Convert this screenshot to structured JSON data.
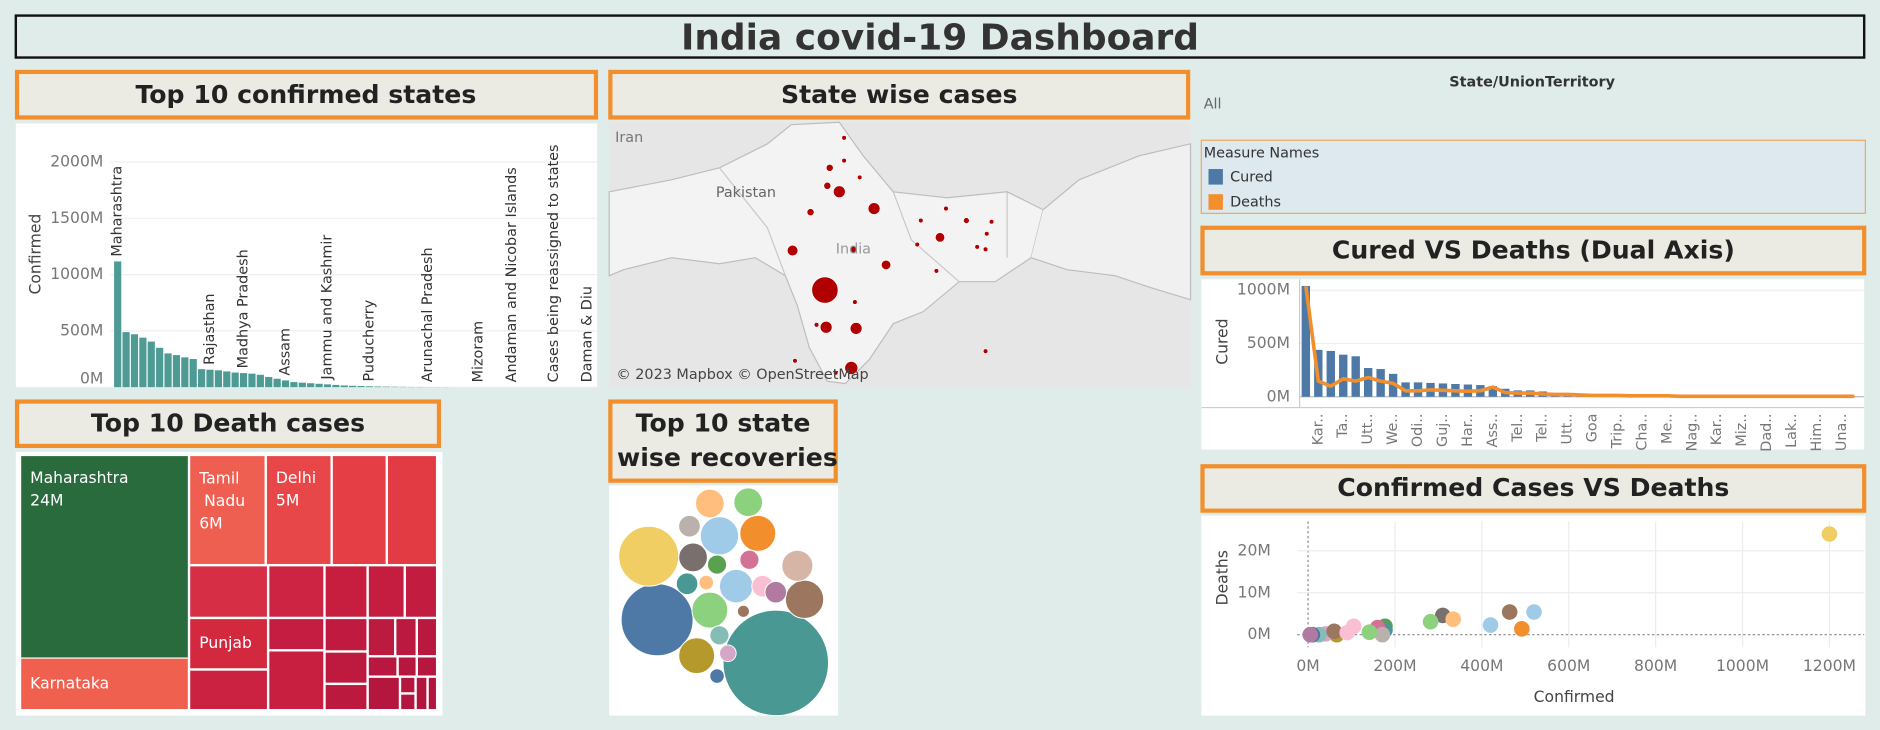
{
  "title": "India covid-19 Dashboard",
  "filter": {
    "label": "State/UnionTerritory",
    "value": "All"
  },
  "chart_data": [
    {
      "type": "bar",
      "title": "Top 10 confirmed states",
      "y_label": "Confirmed",
      "color": "#4e9a94",
      "categories": [
        "Maharashtra",
        null,
        null,
        null,
        null,
        null,
        null,
        null,
        null,
        null,
        null,
        "Rajasthan",
        null,
        null,
        null,
        "Madhya Pradesh",
        null,
        null,
        null,
        null,
        "Assam",
        null,
        null,
        null,
        null,
        "Jammu and Kashmir",
        null,
        null,
        null,
        null,
        "Puducherry",
        null,
        null,
        null,
        null,
        null,
        null,
        "Arunachal Pradesh",
        null,
        null,
        null,
        null,
        null,
        "Mizoram",
        null,
        null,
        null,
        "Andaman and Nicobar Islands",
        null,
        null,
        null,
        null,
        "Cases being reassigned to states",
        null,
        null,
        null,
        "Daman & Diu"
      ],
      "values": [
        1117,
        489,
        470,
        440,
        405,
        350,
        300,
        285,
        265,
        250,
        160,
        155,
        150,
        140,
        130,
        125,
        120,
        110,
        90,
        75,
        60,
        45,
        40,
        35,
        30,
        25,
        20,
        15,
        12,
        10,
        8,
        6,
        5,
        4,
        3,
        2,
        2,
        1,
        1,
        1,
        0,
        0,
        0,
        0,
        0,
        0,
        0,
        0,
        0,
        0,
        0,
        0,
        0,
        0,
        0,
        0,
        0
      ],
      "ylim": [
        0,
        2300
      ],
      "yticks": [
        {
          "value": 0,
          "label": "0M"
        },
        {
          "value": 500,
          "label": "500M"
        },
        {
          "value": 1000,
          "label": "1000M"
        },
        {
          "value": 1500,
          "label": "1500M"
        },
        {
          "value": 2000,
          "label": "2000M"
        }
      ],
      "grid": true
    },
    {
      "type": "map",
      "title": "State wise cases",
      "labels": [
        "Iran",
        "Pakistan",
        "India"
      ],
      "attribution": "© 2023 Mapbox © OpenStreetMap",
      "color": "#b00000"
    },
    {
      "type": "treemap",
      "title": "Top 10 Death cases",
      "categories": [
        "Maharashtra",
        "Karnataka",
        "Tamil Nadu",
        "Delhi",
        "Punjab"
      ],
      "values": [
        24,
        6.1,
        5.8,
        5,
        2.8
      ],
      "value_labels": [
        "24M",
        null,
        "6M",
        "5M",
        null
      ],
      "colors": [
        "#2a6b3d",
        "#f0604f",
        "#ef5f51",
        "#e8474a",
        "#d2293f"
      ]
    },
    {
      "type": "bubble",
      "title": "Top 10 state wise recoveries",
      "values": [
        1000,
        465,
        323,
        116,
        116,
        132,
        101,
        116,
        132,
        87,
        74,
        74,
        74,
        42,
        42,
        42,
        33,
        42,
        33,
        25,
        33,
        19,
        13,
        19
      ],
      "colors": [
        "#499894",
        "#4e79a7",
        "#f1ce63",
        "#b6992d",
        "#8cd17d",
        "#a0cbe8",
        "#a0cbe8",
        "#f28e2b",
        "#9d7660",
        "#d7b5a6",
        "#ffbe7d",
        "#8cd17d",
        "#79706e",
        "#bab0ac",
        "#fabfd2",
        "#b07aa1",
        "#d37295",
        "#499894",
        "#59a14f",
        "#d4a6c8",
        "#86bcb6",
        "#4e79a7",
        "#9d7660",
        "#ffbe7d"
      ]
    },
    {
      "type": "dual",
      "title": "Cured VS  Deaths (Dual Axis)",
      "y_label": "Cured",
      "legend_title": "Measure Names",
      "categories": [
        null,
        "Kar..",
        null,
        "Ta..",
        null,
        "Utt..",
        null,
        "We..",
        null,
        "Odi..",
        null,
        "Guj..",
        null,
        "Har..",
        null,
        "Ass..",
        null,
        "Tel..",
        null,
        "Tel..",
        null,
        "Utt..",
        null,
        "Goa",
        null,
        "Trip..",
        null,
        "Cha..",
        null,
        "Me..",
        null,
        "Nag..",
        null,
        "Kar..",
        null,
        "Miz..",
        null,
        "Dad..",
        null,
        "Lak..",
        null,
        "Him..",
        null,
        "Una..",
        null
      ],
      "series": [
        {
          "name": "Cured",
          "color": "#4e79a7",
          "values": [
            1040,
            440,
            430,
            395,
            380,
            270,
            260,
            215,
            135,
            135,
            130,
            125,
            120,
            115,
            110,
            100,
            75,
            60,
            60,
            50,
            30,
            25,
            20,
            15,
            12,
            10,
            9,
            8,
            7,
            6,
            5,
            5,
            4,
            4,
            3,
            3,
            2,
            2,
            2,
            1,
            1,
            1,
            1,
            1,
            1
          ]
        },
        {
          "name": "Deaths",
          "color": "#f28e2b",
          "axis": "y2",
          "values": [
            24,
            3.4,
            2.3,
            3.9,
            3.4,
            4.2,
            3.4,
            2.9,
            1.3,
            1.3,
            1.5,
            1.4,
            1.3,
            1.2,
            1.3,
            2.1,
            0.9,
            0.8,
            0.8,
            0.6,
            0.5,
            0.5,
            0.4,
            0.3,
            0.3,
            0.3,
            0.2,
            0.2,
            0.2,
            0.2,
            0.1,
            0.1,
            0.1,
            0.1,
            0.1,
            0.1,
            0.1,
            0.1,
            0.1,
            0.1,
            0.1,
            0.1,
            0.1,
            0.1,
            0.1
          ]
        }
      ],
      "ylim": [
        0,
        1080
      ],
      "yticks": [
        {
          "value": 0,
          "label": "0M"
        },
        {
          "value": 500,
          "label": "500M"
        },
        {
          "value": 1000,
          "label": "1000M"
        }
      ],
      "y2lim": [
        0,
        25
      ],
      "grid": true
    },
    {
      "type": "scatter",
      "title": "Confirmed Cases VS Deaths",
      "x_label": "Confirmed",
      "y_label": "Deaths",
      "x": [
        1200,
        520,
        464,
        492,
        420,
        310,
        334,
        282,
        177,
        177,
        160,
        171,
        105,
        141,
        66,
        40,
        25,
        10,
        5,
        60,
        90
      ],
      "y": [
        24,
        5.4,
        5.4,
        1.4,
        2.3,
        4.6,
        3.7,
        3.1,
        2,
        1.1,
        1.7,
        0,
        2,
        0.6,
        0,
        0.2,
        0,
        0,
        0,
        0.8,
        0.5
      ],
      "colors": [
        "#f1ce63",
        "#a0cbe8",
        "#9d7660",
        "#f28e2b",
        "#a0cbe8",
        "#79706e",
        "#ffbe7d",
        "#8cd17d",
        "#59a14f",
        "#499894",
        "#d37295",
        "#bab0ac",
        "#fabfd2",
        "#8cd17d",
        "#b6992d",
        "#d4a6c8",
        "#86bcb6",
        "#4e79a7",
        "#b07aa1",
        "#9d7660",
        "#fabfd2"
      ],
      "xlim": [
        -25,
        1280
      ],
      "ylim": [
        -3,
        27
      ],
      "xticks": [
        {
          "value": 0,
          "label": "0M"
        },
        {
          "value": 200,
          "label": "200M"
        },
        {
          "value": 400,
          "label": "400M"
        },
        {
          "value": 600,
          "label": "600M"
        },
        {
          "value": 800,
          "label": "800M"
        },
        {
          "value": 1000,
          "label": "1000M"
        },
        {
          "value": 1200,
          "label": "1200M"
        }
      ],
      "yticks": [
        {
          "value": 0,
          "label": "0M"
        },
        {
          "value": 10,
          "label": "10M"
        },
        {
          "value": 20,
          "label": "20M"
        }
      ],
      "grid": true
    }
  ]
}
